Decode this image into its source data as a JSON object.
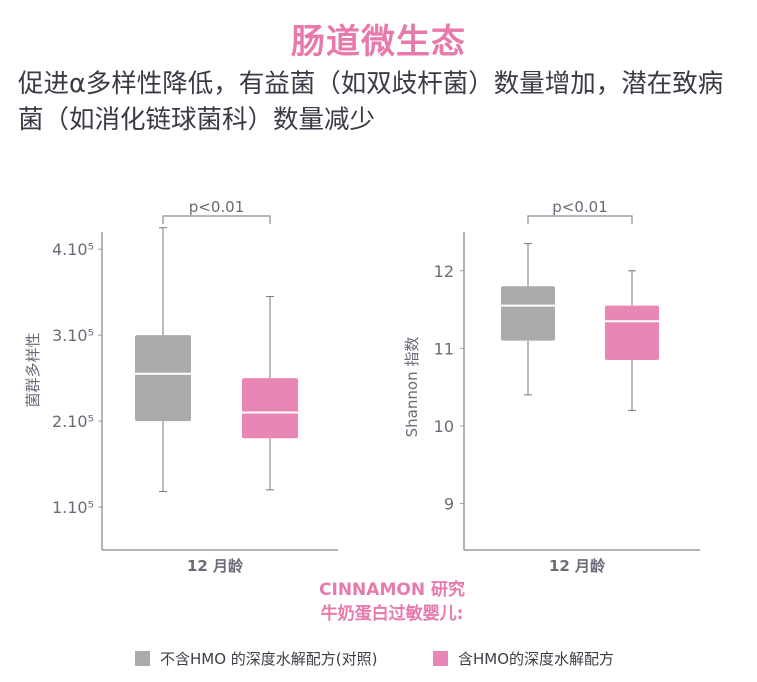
{
  "title": "肠道微生态",
  "subtitle": "促进α多样性降低，有益菌（如双歧杆菌）数量增加，潜在致病菌（如消化链球菌科）数量减少",
  "study": {
    "line1": "CINNAMON 研究",
    "line2": "牛奶蛋白过敏婴儿:"
  },
  "legend": [
    {
      "label": "不含HMO 的深度水解配方(对照)",
      "color": "#a9abab"
    },
    {
      "label": "含HMO的深度水解配方",
      "color": "#ea86b5"
    }
  ],
  "colors": {
    "control": "#a9abab",
    "hmo": "#ea86b5",
    "axis": "#9a9aa4",
    "label": "#6b6b78"
  },
  "chart_data": [
    {
      "type": "box",
      "ylabel": "菌群多样性",
      "xlabel": "12 月龄",
      "ylim": [
        0.5,
        4.2
      ],
      "yticks": [
        1,
        2,
        3,
        4
      ],
      "ytick_labels": [
        "1.10⁵",
        "2.10⁵",
        "3.10⁵",
        "4.10⁵"
      ],
      "significance": "p<0.01",
      "series": [
        {
          "name": "不含HMO 的深度水解配方(对照)",
          "whisker_low": 1.18,
          "q1": 2.0,
          "median": 2.55,
          "q3": 3.0,
          "whisker_high": 4.25
        },
        {
          "name": "含HMO的深度水解配方",
          "whisker_low": 1.2,
          "q1": 1.8,
          "median": 2.1,
          "q3": 2.5,
          "whisker_high": 3.45
        }
      ]
    },
    {
      "type": "box",
      "ylabel": "Shannon 指数",
      "xlabel": "12 月龄",
      "ylim": [
        8.4,
        12.5
      ],
      "yticks": [
        9,
        10,
        11,
        12
      ],
      "ytick_labels": [
        "9",
        "10",
        "11",
        "12"
      ],
      "significance": "p<0.01",
      "series": [
        {
          "name": "不含HMO 的深度水解配方(对照)",
          "whisker_low": 10.4,
          "q1": 11.1,
          "median": 11.55,
          "q3": 11.8,
          "whisker_high": 12.35
        },
        {
          "name": "含HMO的深度水解配方",
          "whisker_low": 10.2,
          "q1": 10.85,
          "median": 11.35,
          "q3": 11.55,
          "whisker_high": 12.0
        }
      ]
    }
  ]
}
